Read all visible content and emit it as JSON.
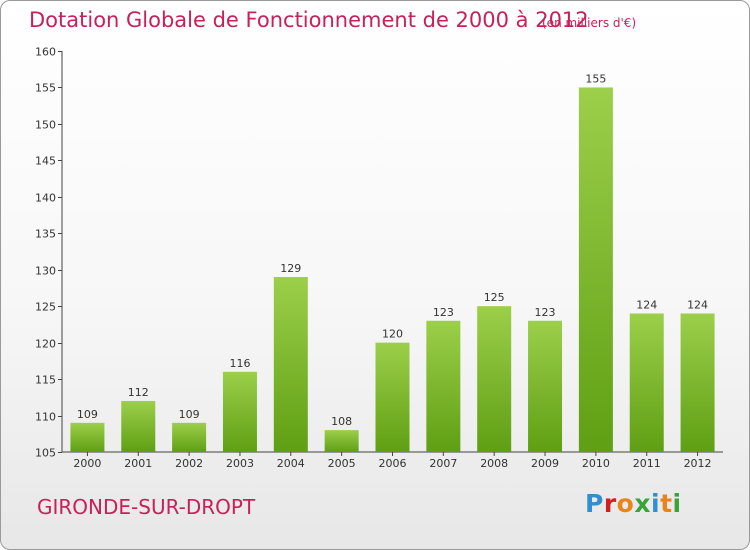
{
  "header": {
    "title": "Dotation Globale de Fonctionnement de 2000 à 2012",
    "unit": "(en milliers d'€)"
  },
  "footer": {
    "commune": "GIRONDE-SUR-DROPT",
    "logo_text": "Proxiti"
  },
  "colors": {
    "accent": "#c8205a",
    "bar_top": "#9ccf4a",
    "bar_bottom": "#5f9f14"
  },
  "chart_data": {
    "type": "bar",
    "title": "Dotation Globale de Fonctionnement de 2000 à 2012",
    "subtitle": "(en milliers d'€)",
    "xlabel": "",
    "ylabel": "",
    "categories": [
      "2000",
      "2001",
      "2002",
      "2003",
      "2004",
      "2005",
      "2006",
      "2007",
      "2008",
      "2009",
      "2010",
      "2011",
      "2012"
    ],
    "values": [
      109,
      112,
      109,
      116,
      129,
      108,
      120,
      123,
      125,
      123,
      155,
      124,
      124
    ],
    "ylim": [
      105,
      160
    ],
    "yticks": [
      105,
      110,
      115,
      120,
      125,
      130,
      135,
      140,
      145,
      150,
      155,
      160
    ],
    "grid": false,
    "data_labels": true
  }
}
